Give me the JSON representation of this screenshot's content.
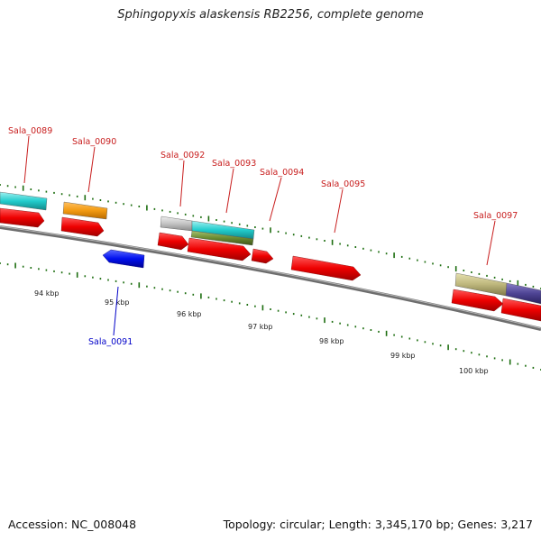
{
  "title": "Sphingopyxis alaskensis RB2256, complete genome",
  "footer": {
    "accession": "Accession: NC_008048",
    "summary": "Topology: circular; Length: 3,345,170 bp; Genes: 3,217"
  },
  "colors": {
    "backbone": "#777777",
    "tick": "#1d6e10",
    "label_forward": "#c81e1e",
    "label_reverse": "#0000c8"
  },
  "scale_labels": [
    "94 kbp",
    "95 kbp",
    "96 kbp",
    "97 kbp",
    "98 kbp",
    "99 kbp",
    "100 kbp"
  ],
  "genes": [
    {
      "name": "Sala_0089",
      "strand": "+"
    },
    {
      "name": "Sala_0090",
      "strand": "+"
    },
    {
      "name": "Sala_0091",
      "strand": "-"
    },
    {
      "name": "Sala_0092",
      "strand": "+"
    },
    {
      "name": "Sala_0093",
      "strand": "+"
    },
    {
      "name": "Sala_0094",
      "strand": "+"
    },
    {
      "name": "Sala_0095",
      "strand": "+"
    },
    {
      "name": "Sala_0097",
      "strand": "+"
    }
  ]
}
